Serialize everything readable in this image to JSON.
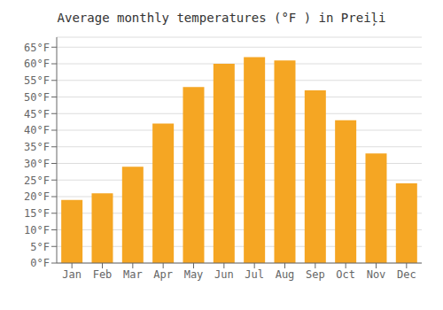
{
  "chart_data": {
    "type": "bar",
    "title": "Average monthly temperatures (°F ) in Preiļi",
    "categories": [
      "Jan",
      "Feb",
      "Mar",
      "Apr",
      "May",
      "Jun",
      "Jul",
      "Aug",
      "Sep",
      "Oct",
      "Nov",
      "Dec"
    ],
    "values": [
      19,
      21,
      29,
      42,
      53,
      60,
      62,
      61,
      52,
      43,
      33,
      24
    ],
    "color": "#F5A623",
    "ylim": [
      0,
      68
    ],
    "yticks": [
      {
        "value": 0,
        "label": "0°F"
      },
      {
        "value": 5,
        "label": "5°F"
      },
      {
        "value": 10,
        "label": "10°F"
      },
      {
        "value": 15,
        "label": "15°F"
      },
      {
        "value": 20,
        "label": "20°F"
      },
      {
        "value": 25,
        "label": "25°F"
      },
      {
        "value": 30,
        "label": "30°F"
      },
      {
        "value": 35,
        "label": "35°F"
      },
      {
        "value": 40,
        "label": "40°F"
      },
      {
        "value": 45,
        "label": "45°F"
      },
      {
        "value": 50,
        "label": "50°F"
      },
      {
        "value": 55,
        "label": "55°F"
      },
      {
        "value": 60,
        "label": "60°F"
      },
      {
        "value": 65,
        "label": "65°F"
      }
    ],
    "grid": true
  }
}
